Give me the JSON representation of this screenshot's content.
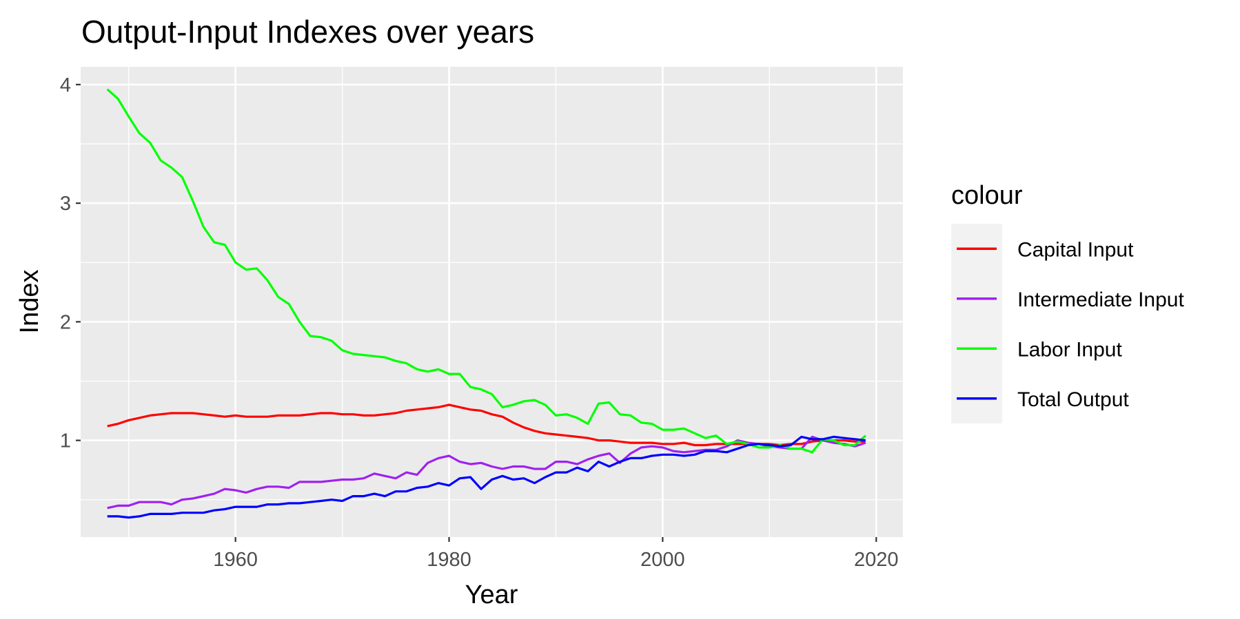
{
  "chart_data": {
    "type": "line",
    "title": "Output-Input Indexes over years",
    "xlabel": "Year",
    "ylabel": "Index",
    "xlim": [
      1945.5,
      2022.5
    ],
    "ylim": [
      0.185,
      4.15
    ],
    "x_ticks": [
      1960,
      1980,
      2000,
      2020
    ],
    "y_ticks": [
      1,
      2,
      3,
      4
    ],
    "x_tick_labels": [
      "1960",
      "1980",
      "2000",
      "2020"
    ],
    "y_tick_labels": [
      "1",
      "2",
      "3",
      "4"
    ],
    "grid": true,
    "legend": {
      "title": "colour",
      "position": "right"
    },
    "x": [
      1948,
      1949,
      1950,
      1951,
      1952,
      1953,
      1954,
      1955,
      1956,
      1957,
      1958,
      1959,
      1960,
      1961,
      1962,
      1963,
      1964,
      1965,
      1966,
      1967,
      1968,
      1969,
      1970,
      1971,
      1972,
      1973,
      1974,
      1975,
      1976,
      1977,
      1978,
      1979,
      1980,
      1981,
      1982,
      1983,
      1984,
      1985,
      1986,
      1987,
      1988,
      1989,
      1990,
      1991,
      1992,
      1993,
      1994,
      1995,
      1996,
      1997,
      1998,
      1999,
      2000,
      2001,
      2002,
      2003,
      2004,
      2005,
      2006,
      2007,
      2008,
      2009,
      2010,
      2011,
      2012,
      2013,
      2014,
      2015,
      2016,
      2017,
      2018,
      2019
    ],
    "series": [
      {
        "name": "Capital Input",
        "color": "#ff0000",
        "values": [
          1.12,
          1.14,
          1.17,
          1.19,
          1.21,
          1.22,
          1.23,
          1.23,
          1.23,
          1.22,
          1.21,
          1.2,
          1.21,
          1.2,
          1.2,
          1.2,
          1.21,
          1.21,
          1.21,
          1.22,
          1.23,
          1.23,
          1.22,
          1.22,
          1.21,
          1.21,
          1.22,
          1.23,
          1.25,
          1.26,
          1.27,
          1.28,
          1.3,
          1.28,
          1.26,
          1.25,
          1.22,
          1.2,
          1.15,
          1.11,
          1.08,
          1.06,
          1.05,
          1.04,
          1.03,
          1.02,
          1.0,
          1.0,
          0.99,
          0.98,
          0.98,
          0.98,
          0.97,
          0.97,
          0.98,
          0.96,
          0.96,
          0.97,
          0.97,
          0.97,
          0.97,
          0.97,
          0.97,
          0.96,
          0.97,
          0.97,
          0.99,
          1.0,
          1.0,
          1.0,
          0.99,
          0.99
        ]
      },
      {
        "name": "Intermediate Input",
        "color": "#a020f0",
        "values": [
          0.43,
          0.45,
          0.45,
          0.48,
          0.48,
          0.48,
          0.46,
          0.5,
          0.51,
          0.53,
          0.55,
          0.59,
          0.58,
          0.56,
          0.59,
          0.61,
          0.61,
          0.6,
          0.65,
          0.65,
          0.65,
          0.66,
          0.67,
          0.67,
          0.68,
          0.72,
          0.7,
          0.68,
          0.73,
          0.71,
          0.81,
          0.85,
          0.87,
          0.82,
          0.8,
          0.81,
          0.78,
          0.76,
          0.78,
          0.78,
          0.76,
          0.76,
          0.82,
          0.82,
          0.8,
          0.84,
          0.87,
          0.89,
          0.81,
          0.89,
          0.94,
          0.95,
          0.94,
          0.91,
          0.9,
          0.91,
          0.92,
          0.92,
          0.95,
          1.0,
          0.98,
          0.97,
          0.95,
          0.94,
          0.93,
          0.93,
          1.03,
          1.0,
          0.98,
          0.97,
          0.95,
          0.98
        ]
      },
      {
        "name": "Labor Input",
        "color": "#00ff00",
        "values": [
          3.96,
          3.88,
          3.73,
          3.59,
          3.51,
          3.36,
          3.3,
          3.22,
          3.02,
          2.8,
          2.67,
          2.65,
          2.5,
          2.44,
          2.45,
          2.35,
          2.21,
          2.15,
          2.0,
          1.88,
          1.87,
          1.84,
          1.76,
          1.73,
          1.72,
          1.71,
          1.7,
          1.67,
          1.65,
          1.6,
          1.58,
          1.6,
          1.56,
          1.56,
          1.45,
          1.43,
          1.39,
          1.28,
          1.3,
          1.33,
          1.34,
          1.3,
          1.21,
          1.22,
          1.19,
          1.14,
          1.31,
          1.32,
          1.22,
          1.21,
          1.15,
          1.14,
          1.09,
          1.09,
          1.1,
          1.06,
          1.02,
          1.04,
          0.97,
          0.99,
          0.97,
          0.94,
          0.94,
          0.96,
          0.93,
          0.93,
          0.9,
          1.01,
          1.0,
          0.96,
          0.96,
          1.04
        ]
      },
      {
        "name": "Total Output",
        "color": "#0000ff",
        "values": [
          0.36,
          0.36,
          0.35,
          0.36,
          0.38,
          0.38,
          0.38,
          0.39,
          0.39,
          0.39,
          0.41,
          0.42,
          0.44,
          0.44,
          0.44,
          0.46,
          0.46,
          0.47,
          0.47,
          0.48,
          0.49,
          0.5,
          0.49,
          0.53,
          0.53,
          0.55,
          0.53,
          0.57,
          0.57,
          0.6,
          0.61,
          0.64,
          0.62,
          0.68,
          0.69,
          0.59,
          0.67,
          0.7,
          0.67,
          0.68,
          0.64,
          0.69,
          0.73,
          0.73,
          0.77,
          0.74,
          0.82,
          0.78,
          0.82,
          0.85,
          0.85,
          0.87,
          0.88,
          0.88,
          0.87,
          0.88,
          0.91,
          0.91,
          0.9,
          0.93,
          0.96,
          0.97,
          0.96,
          0.95,
          0.96,
          1.03,
          1.01,
          1.01,
          1.03,
          1.02,
          1.01,
          1.0
        ]
      }
    ]
  }
}
